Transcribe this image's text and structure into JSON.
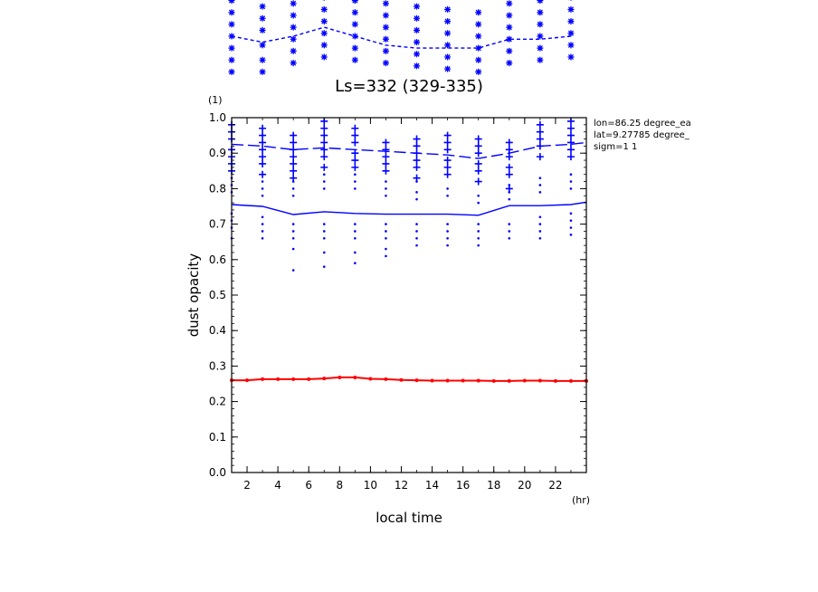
{
  "chart_data": [
    {
      "type": "scatter",
      "title": "",
      "series": [
        {
          "marker": "asterisk",
          "color": "#0000ff",
          "points": [
            [
              1,
              0.98
            ],
            [
              1,
              0.94
            ],
            [
              1,
              0.9
            ],
            [
              1,
              0.86
            ],
            [
              1,
              0.82
            ],
            [
              1,
              0.78
            ],
            [
              1,
              0.74
            ],
            [
              3,
              0.96
            ],
            [
              3,
              0.92
            ],
            [
              3,
              0.88
            ],
            [
              3,
              0.83
            ],
            [
              3,
              0.78
            ],
            [
              3,
              0.74
            ],
            [
              5,
              0.97
            ],
            [
              5,
              0.93
            ],
            [
              5,
              0.89
            ],
            [
              5,
              0.85
            ],
            [
              5,
              0.81
            ],
            [
              5,
              0.77
            ],
            [
              7,
              0.99
            ],
            [
              7,
              0.95
            ],
            [
              7,
              0.91
            ],
            [
              7,
              0.87
            ],
            [
              7,
              0.83
            ],
            [
              7,
              0.79
            ],
            [
              9,
              0.98
            ],
            [
              9,
              0.94
            ],
            [
              9,
              0.9
            ],
            [
              9,
              0.86
            ],
            [
              9,
              0.82
            ],
            [
              9,
              0.78
            ],
            [
              11,
              0.97
            ],
            [
              11,
              0.93
            ],
            [
              11,
              0.89
            ],
            [
              11,
              0.85
            ],
            [
              11,
              0.81
            ],
            [
              11,
              0.77
            ],
            [
              13,
              0.96
            ],
            [
              13,
              0.92
            ],
            [
              13,
              0.88
            ],
            [
              13,
              0.84
            ],
            [
              13,
              0.8
            ],
            [
              13,
              0.76
            ],
            [
              15,
              0.95
            ],
            [
              15,
              0.91
            ],
            [
              15,
              0.87
            ],
            [
              15,
              0.83
            ],
            [
              15,
              0.79
            ],
            [
              15,
              0.75
            ],
            [
              17,
              0.94
            ],
            [
              17,
              0.9
            ],
            [
              17,
              0.86
            ],
            [
              17,
              0.82
            ],
            [
              17,
              0.78
            ],
            [
              17,
              0.74
            ],
            [
              19,
              0.97
            ],
            [
              19,
              0.93
            ],
            [
              19,
              0.89
            ],
            [
              19,
              0.85
            ],
            [
              19,
              0.81
            ],
            [
              19,
              0.77
            ],
            [
              21,
              0.98
            ],
            [
              21,
              0.94
            ],
            [
              21,
              0.9
            ],
            [
              21,
              0.86
            ],
            [
              21,
              0.82
            ],
            [
              21,
              0.78
            ],
            [
              23,
              0.99
            ],
            [
              23,
              0.95
            ],
            [
              23,
              0.91
            ],
            [
              23,
              0.87
            ],
            [
              23,
              0.83
            ],
            [
              23,
              0.79
            ]
          ]
        },
        {
          "style": "dashed",
          "color": "#0000ff",
          "x": [
            1,
            3,
            5,
            7,
            9,
            11,
            13,
            15,
            17,
            19,
            21,
            23
          ],
          "y": [
            0.86,
            0.84,
            0.86,
            0.89,
            0.86,
            0.83,
            0.82,
            0.82,
            0.82,
            0.85,
            0.85,
            0.86
          ]
        }
      ],
      "xlim": [
        1,
        24
      ],
      "ylim": [
        0.72,
        1.0
      ],
      "grid": false
    },
    {
      "type": "scatter",
      "title": "Ls=332 (329-335)",
      "xlabel": "local time",
      "xunit": "(hr)",
      "ylabel": "dust opacity",
      "yunit": "(1)",
      "xlim": [
        1,
        24
      ],
      "ylim": [
        0.0,
        1.0
      ],
      "xticks": [
        "2",
        "4",
        "6",
        "8",
        "10",
        "12",
        "14",
        "16",
        "18",
        "20",
        "22"
      ],
      "yticks": [
        "0.0",
        "0.1",
        "0.2",
        "0.3",
        "0.4",
        "0.5",
        "0.6",
        "0.7",
        "0.8",
        "0.9",
        "1.0"
      ],
      "grid": false,
      "annotations": [
        "lon=86.25 degree_ea",
        "lat=9.27785 degree_",
        "sigm=1 1"
      ],
      "series": [
        {
          "marker": "plus",
          "color": "#0000ff",
          "points": [
            [
              1,
              0.98
            ],
            [
              1,
              0.96
            ],
            [
              1,
              0.94
            ],
            [
              1,
              0.91
            ],
            [
              1,
              0.89
            ],
            [
              1,
              0.87
            ],
            [
              1,
              0.85
            ],
            [
              3,
              0.97
            ],
            [
              3,
              0.95
            ],
            [
              3,
              0.93
            ],
            [
              3,
              0.91
            ],
            [
              3,
              0.89
            ],
            [
              3,
              0.87
            ],
            [
              3,
              0.84
            ],
            [
              5,
              0.95
            ],
            [
              5,
              0.93
            ],
            [
              5,
              0.91
            ],
            [
              5,
              0.89
            ],
            [
              5,
              0.87
            ],
            [
              5,
              0.85
            ],
            [
              5,
              0.83
            ],
            [
              7,
              0.99
            ],
            [
              7,
              0.97
            ],
            [
              7,
              0.95
            ],
            [
              7,
              0.93
            ],
            [
              7,
              0.91
            ],
            [
              7,
              0.89
            ],
            [
              7,
              0.86
            ],
            [
              9,
              0.97
            ],
            [
              9,
              0.95
            ],
            [
              9,
              0.93
            ],
            [
              9,
              0.9
            ],
            [
              9,
              0.88
            ],
            [
              9,
              0.86
            ],
            [
              11,
              0.93
            ],
            [
              11,
              0.91
            ],
            [
              11,
              0.89
            ],
            [
              11,
              0.87
            ],
            [
              11,
              0.85
            ],
            [
              13,
              0.94
            ],
            [
              13,
              0.92
            ],
            [
              13,
              0.9
            ],
            [
              13,
              0.88
            ],
            [
              13,
              0.86
            ],
            [
              13,
              0.83
            ],
            [
              15,
              0.95
            ],
            [
              15,
              0.93
            ],
            [
              15,
              0.91
            ],
            [
              15,
              0.88
            ],
            [
              15,
              0.86
            ],
            [
              15,
              0.84
            ],
            [
              17,
              0.94
            ],
            [
              17,
              0.92
            ],
            [
              17,
              0.9
            ],
            [
              17,
              0.87
            ],
            [
              17,
              0.85
            ],
            [
              17,
              0.82
            ],
            [
              19,
              0.93
            ],
            [
              19,
              0.91
            ],
            [
              19,
              0.89
            ],
            [
              19,
              0.86
            ],
            [
              19,
              0.84
            ],
            [
              19,
              0.8
            ],
            [
              21,
              0.98
            ],
            [
              21,
              0.96
            ],
            [
              21,
              0.94
            ],
            [
              21,
              0.92
            ],
            [
              21,
              0.89
            ],
            [
              23,
              0.99
            ],
            [
              23,
              0.97
            ],
            [
              23,
              0.95
            ],
            [
              23,
              0.93
            ],
            [
              23,
              0.91
            ],
            [
              23,
              0.89
            ]
          ]
        },
        {
          "style": "long-dash",
          "color": "#0000ff",
          "x": [
            1,
            3,
            5,
            7,
            9,
            11,
            13,
            15,
            17,
            19,
            21,
            23,
            24
          ],
          "y": [
            0.925,
            0.92,
            0.91,
            0.915,
            0.91,
            0.905,
            0.9,
            0.895,
            0.885,
            0.9,
            0.92,
            0.925,
            0.93
          ]
        },
        {
          "marker": "dot",
          "color": "#0000ff",
          "points": [
            [
              1,
              0.83
            ],
            [
              1,
              0.81
            ],
            [
              1,
              0.79
            ],
            [
              1,
              0.73
            ],
            [
              1,
              0.71
            ],
            [
              1,
              0.69
            ],
            [
              1,
              0.66
            ],
            [
              3,
              0.82
            ],
            [
              3,
              0.8
            ],
            [
              3,
              0.78
            ],
            [
              3,
              0.72
            ],
            [
              3,
              0.7
            ],
            [
              3,
              0.68
            ],
            [
              3,
              0.66
            ],
            [
              5,
              0.82
            ],
            [
              5,
              0.8
            ],
            [
              5,
              0.78
            ],
            [
              5,
              0.7
            ],
            [
              5,
              0.68
            ],
            [
              5,
              0.66
            ],
            [
              5,
              0.63
            ],
            [
              5,
              0.57
            ],
            [
              7,
              0.84
            ],
            [
              7,
              0.82
            ],
            [
              7,
              0.8
            ],
            [
              7,
              0.7
            ],
            [
              7,
              0.68
            ],
            [
              7,
              0.66
            ],
            [
              7,
              0.62
            ],
            [
              7,
              0.58
            ],
            [
              9,
              0.84
            ],
            [
              9,
              0.82
            ],
            [
              9,
              0.8
            ],
            [
              9,
              0.7
            ],
            [
              9,
              0.68
            ],
            [
              9,
              0.66
            ],
            [
              9,
              0.62
            ],
            [
              9,
              0.59
            ],
            [
              11,
              0.82
            ],
            [
              11,
              0.8
            ],
            [
              11,
              0.78
            ],
            [
              11,
              0.7
            ],
            [
              11,
              0.68
            ],
            [
              11,
              0.66
            ],
            [
              11,
              0.63
            ],
            [
              11,
              0.61
            ],
            [
              13,
              0.82
            ],
            [
              13,
              0.79
            ],
            [
              13,
              0.77
            ],
            [
              13,
              0.7
            ],
            [
              13,
              0.68
            ],
            [
              13,
              0.66
            ],
            [
              13,
              0.64
            ],
            [
              15,
              0.8
            ],
            [
              15,
              0.78
            ],
            [
              15,
              0.7
            ],
            [
              15,
              0.68
            ],
            [
              15,
              0.66
            ],
            [
              15,
              0.64
            ],
            [
              17,
              0.78
            ],
            [
              17,
              0.76
            ],
            [
              17,
              0.7
            ],
            [
              17,
              0.68
            ],
            [
              17,
              0.66
            ],
            [
              17,
              0.64
            ],
            [
              19,
              0.81
            ],
            [
              19,
              0.79
            ],
            [
              19,
              0.77
            ],
            [
              19,
              0.7
            ],
            [
              19,
              0.68
            ],
            [
              19,
              0.66
            ],
            [
              21,
              0.83
            ],
            [
              21,
              0.81
            ],
            [
              21,
              0.79
            ],
            [
              21,
              0.72
            ],
            [
              21,
              0.7
            ],
            [
              21,
              0.68
            ],
            [
              21,
              0.66
            ],
            [
              23,
              0.84
            ],
            [
              23,
              0.82
            ],
            [
              23,
              0.8
            ],
            [
              23,
              0.73
            ],
            [
              23,
              0.71
            ],
            [
              23,
              0.69
            ],
            [
              23,
              0.67
            ]
          ]
        },
        {
          "style": "solid",
          "color": "#0000ff",
          "x": [
            1,
            3,
            5,
            7,
            9,
            11,
            13,
            15,
            17,
            19,
            21,
            23,
            24
          ],
          "y": [
            0.755,
            0.75,
            0.727,
            0.735,
            0.73,
            0.728,
            0.728,
            0.728,
            0.725,
            0.752,
            0.752,
            0.755,
            0.762
          ]
        },
        {
          "style": "solid",
          "marker": "dot",
          "color": "#ff0000",
          "x": [
            1,
            2,
            3,
            4,
            5,
            6,
            7,
            8,
            9,
            10,
            11,
            12,
            13,
            14,
            15,
            16,
            17,
            18,
            19,
            20,
            21,
            22,
            23,
            24
          ],
          "y": [
            0.26,
            0.26,
            0.263,
            0.263,
            0.263,
            0.263,
            0.265,
            0.268,
            0.268,
            0.264,
            0.263,
            0.261,
            0.26,
            0.259,
            0.259,
            0.259,
            0.259,
            0.258,
            0.258,
            0.259,
            0.259,
            0.258,
            0.258,
            0.258
          ]
        }
      ]
    }
  ]
}
